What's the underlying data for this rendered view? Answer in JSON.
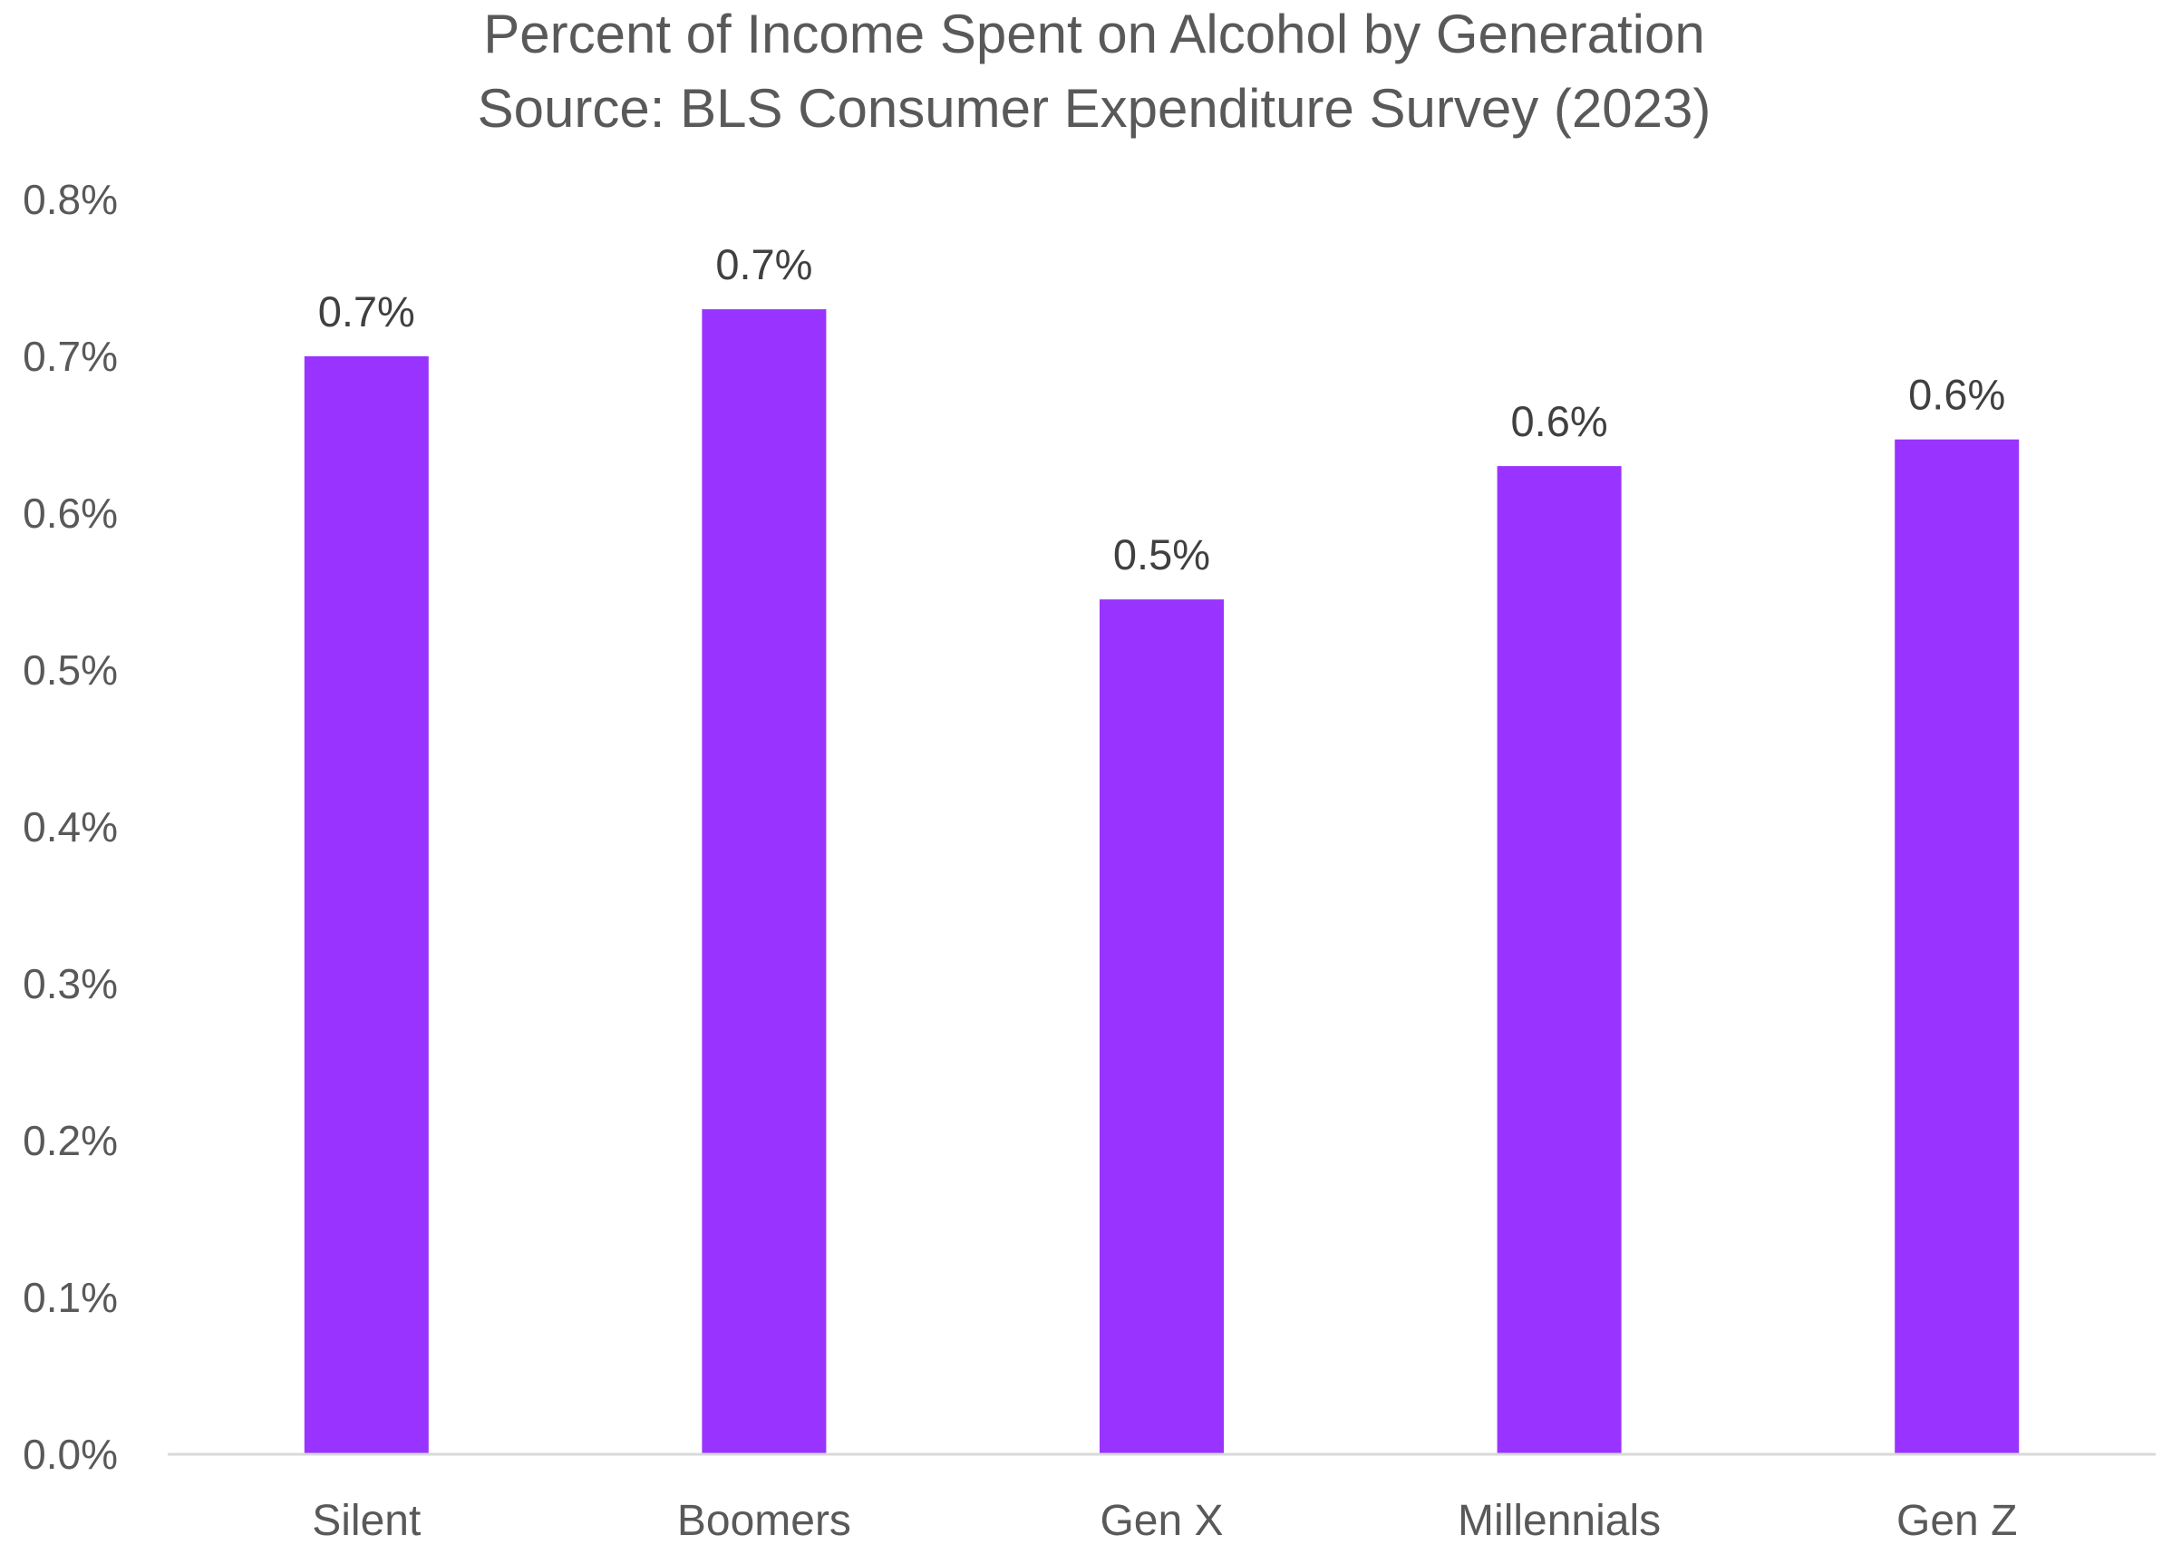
{
  "chart_data": {
    "type": "bar",
    "title": "Percent of Income Spent on Alcohol by Generation",
    "subtitle": "Source: BLS Consumer Expenditure Survey (2023)",
    "xlabel": "",
    "ylabel": "",
    "categories": [
      "Silent",
      "Boomers",
      "Gen X",
      "Millennials",
      "Gen Z"
    ],
    "values": [
      0.7,
      0.73,
      0.545,
      0.63,
      0.647
    ],
    "data_labels": [
      "0.7%",
      "0.7%",
      "0.5%",
      "0.6%",
      "0.6%"
    ],
    "ylim": [
      0,
      0.8
    ],
    "y_ticks": [
      0,
      0.1,
      0.2,
      0.3,
      0.4,
      0.5,
      0.6,
      0.7,
      0.8
    ],
    "y_tick_labels": [
      "0.0%",
      "0.1%",
      "0.2%",
      "0.3%",
      "0.4%",
      "0.5%",
      "0.6%",
      "0.7%",
      "0.8%"
    ],
    "bar_color": "#9933FF",
    "grid": false,
    "legend": "none"
  }
}
